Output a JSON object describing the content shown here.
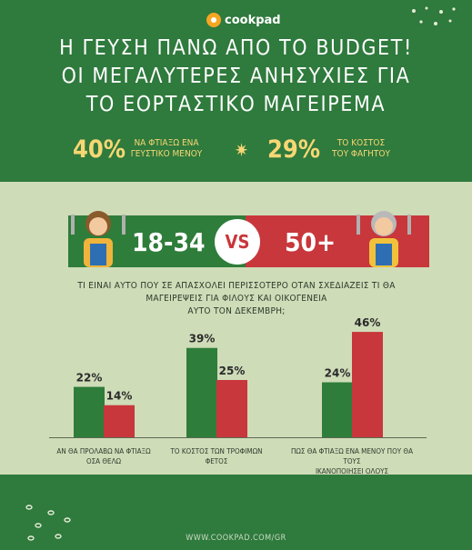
{
  "brand": {
    "name": "cookpad"
  },
  "title": {
    "line1": "Η ΓΕΥΣΗ ΠΑΝΩ ΑΠΟ ΤΟ BUDGET!",
    "line2": "ΟΙ ΜΕΓΑΛΥΤΕΡΕΣ ΑΝΗΣΥΧΙΕΣ ΓΙΑ",
    "line3": "ΤΟ ΕΟΡΤΑΣΤΙΚΟ ΜΑΓΕΙΡΕΜΑ"
  },
  "stats": [
    {
      "value": "40%",
      "line1": "ΝΑ ΦΤΙΑΞΩ ΕΝΑ",
      "line2": "ΓΕΥΣΤΙΚΟ ΜΕΝΟΥ"
    },
    {
      "value": "29%",
      "line1": "ΤΟ ΚΟΣΤΟΣ",
      "line2": "ΤΟΥ ΦΑΓΗΤΟΥ"
    }
  ],
  "comparison": {
    "left": "18-34",
    "vs": "VS",
    "right": "50+"
  },
  "question": {
    "line1": "ΤΙ ΕΙΝΑΙ ΑΥΤΟ ΠΟΥ ΣΕ ΑΠΑΣΧΟΛΕΙ ΠΕΡΙΣΣΟΤΕΡΟ ΟΤΑΝ ΣΧΕΔΙΑΖΕΙΣ ΤΙ ΘΑ",
    "line2": "ΜΑΓΕΙΡΕΨΕΙΣ ΓΙΑ ΦΙΛΟΥΣ ΚΑΙ ΟΙΚΟΓΕΝΕΙΑ",
    "line3": "ΑΥΤΟ ΤΟΝ ΔΕΚΕΜΒΡΗ;"
  },
  "footer": {
    "url": "WWW.COOKPAD.COM/GR"
  },
  "colors": {
    "green": "#2e7d3a",
    "red": "#c8373b",
    "gold": "#f7d774",
    "background": "#cfdcb8"
  },
  "chart_data": {
    "type": "bar",
    "categories": [
      [
        "ΑΝ ΘΑ ΠΡΟΛΑΒΩ ΝΑ ΦΤΙΑΞΩ",
        "ΟΣΑ ΘΕΛΩ"
      ],
      [
        "ΤΟ ΚΟΣΤΟΣ ΤΩΝ ΤΡΟΦΙΜΩΝ",
        "ΦΕΤΟΣ"
      ],
      [
        "ΠΩΣ ΘΑ ΦΤΙΑΞΩ ΕΝΑ ΜΕΝΟΥ ΠΟΥ ΘΑ ΤΟΥΣ",
        "ΙΚΑΝΟΠΟΙΗΣΕΙ ΟΛΟΥΣ"
      ]
    ],
    "series": [
      {
        "name": "18-34",
        "values": [
          22,
          39,
          24
        ],
        "labels": [
          "22%",
          "39%",
          "24%"
        ],
        "color": "#2e7d3a"
      },
      {
        "name": "50+",
        "values": [
          14,
          25,
          46
        ],
        "labels": [
          "14%",
          "25%",
          "46%"
        ],
        "color": "#c8373b"
      }
    ],
    "ylim": [
      0,
      50
    ]
  }
}
